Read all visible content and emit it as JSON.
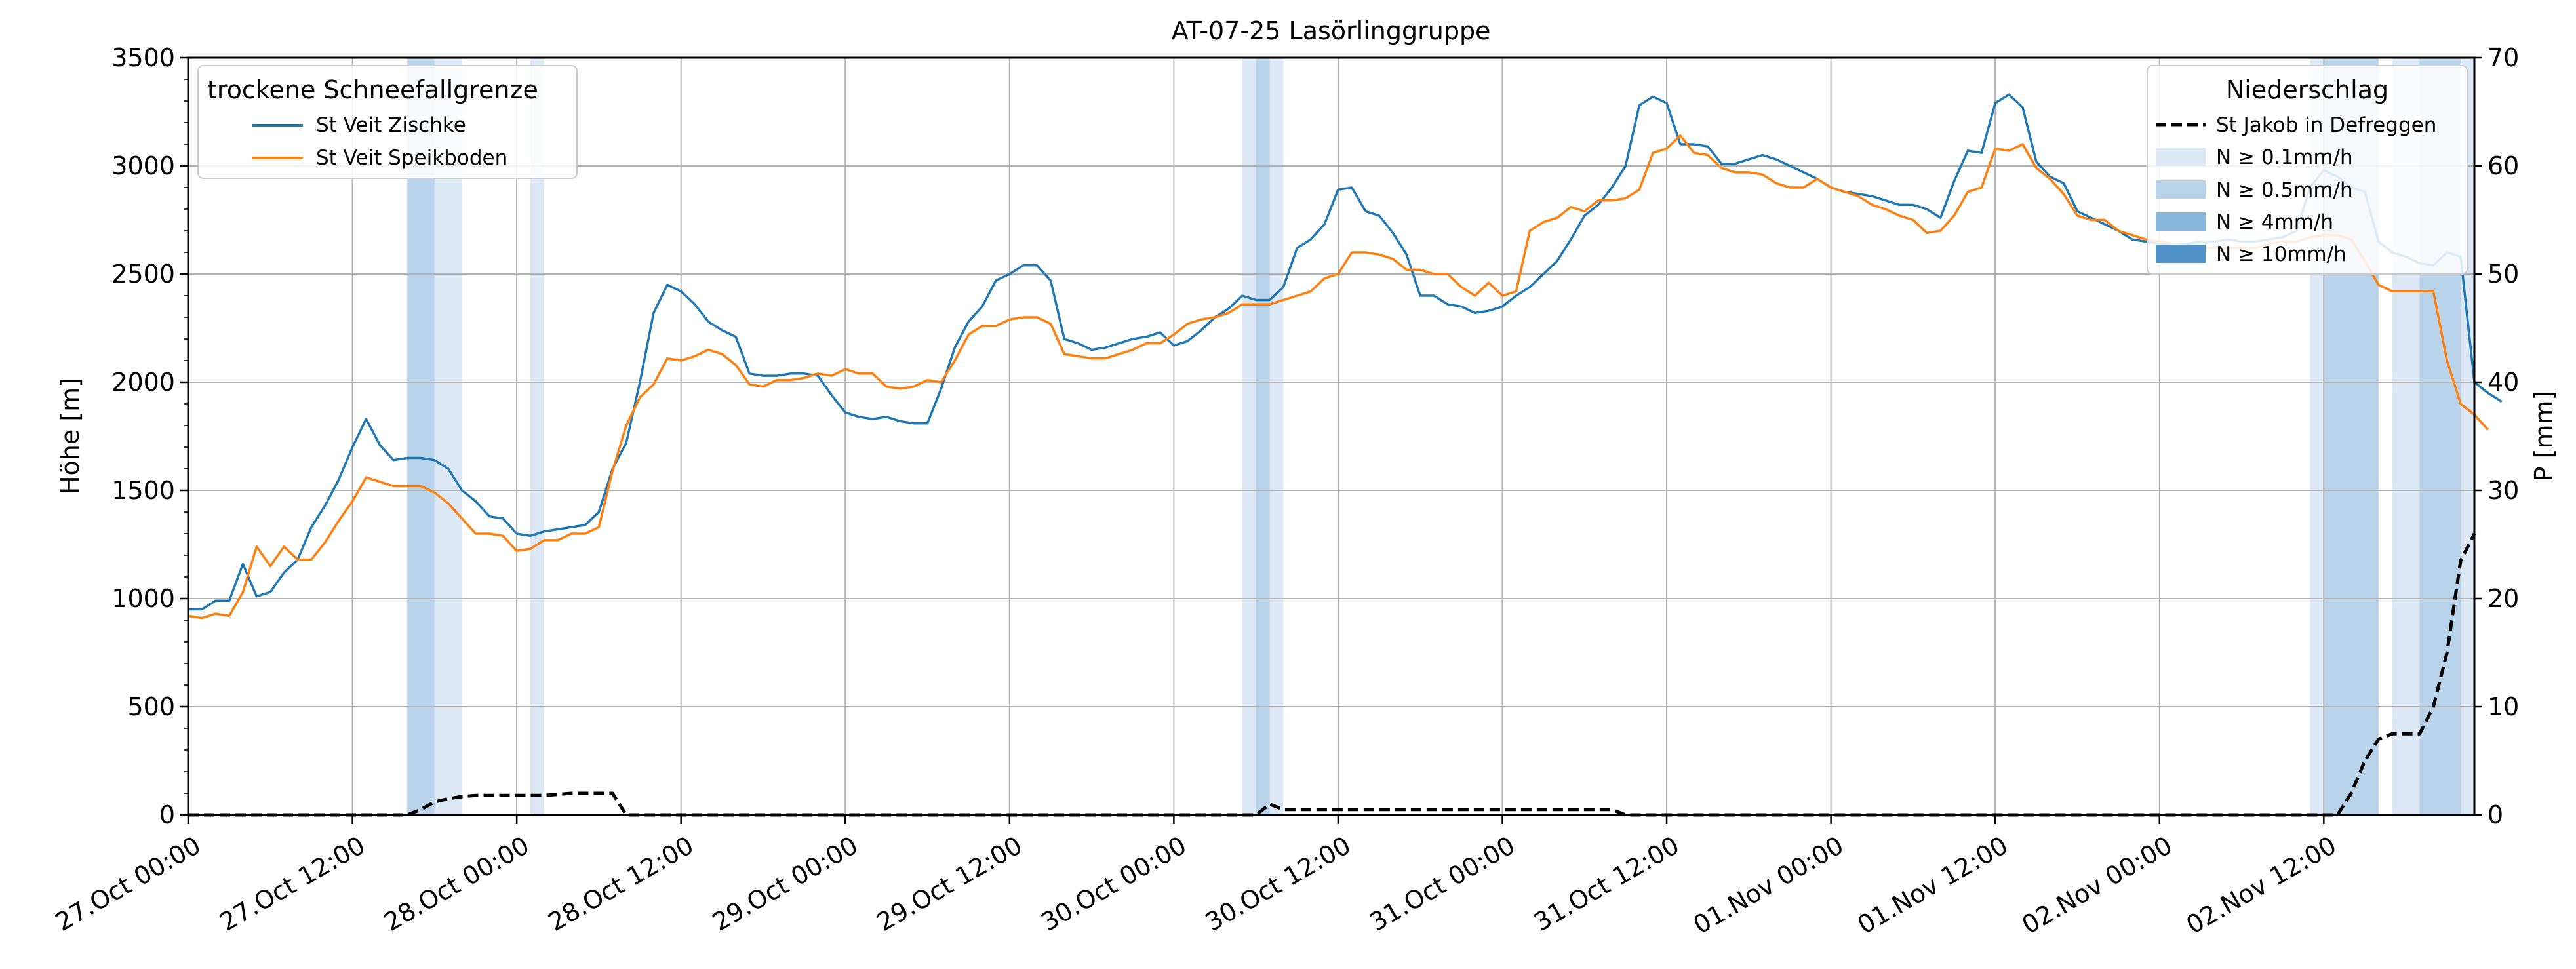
{
  "chart_data": {
    "type": "line",
    "title": "AT-07-25 Lasörlinggruppe",
    "ylabel": "Höhe [m]",
    "y2label": "P [mm]",
    "ylim": [
      0,
      3500
    ],
    "y2lim": [
      0,
      70
    ],
    "yticks": [
      "0",
      "500",
      "1000",
      "1500",
      "2000",
      "2500",
      "3000",
      "3500"
    ],
    "y2ticks": [
      "0",
      "10",
      "20",
      "30",
      "40",
      "50",
      "60",
      "70"
    ],
    "xlim_hours": [
      0,
      167
    ],
    "xticks": [
      {
        "h": 0,
        "label": "27.Oct 00:00"
      },
      {
        "h": 12,
        "label": "27.Oct 12:00"
      },
      {
        "h": 24,
        "label": "28.Oct 00:00"
      },
      {
        "h": 36,
        "label": "28.Oct 12:00"
      },
      {
        "h": 48,
        "label": "29.Oct 00:00"
      },
      {
        "h": 60,
        "label": "29.Oct 12:00"
      },
      {
        "h": 72,
        "label": "30.Oct 00:00"
      },
      {
        "h": 84,
        "label": "30.Oct 12:00"
      },
      {
        "h": 96,
        "label": "31.Oct 00:00"
      },
      {
        "h": 108,
        "label": "31.Oct 12:00"
      },
      {
        "h": 120,
        "label": "01.Nov 00:00"
      },
      {
        "h": 132,
        "label": "01.Nov 12:00"
      },
      {
        "h": 144,
        "label": "02.Nov 00:00"
      },
      {
        "h": 156,
        "label": "02.Nov 12:00"
      }
    ],
    "grid": true,
    "legend_left": {
      "title": "trockene Schneefallgrenze",
      "placement": "top-left",
      "entries": [
        "St Veit Zischke",
        "St Veit Speikboden"
      ]
    },
    "legend_right": {
      "title": "Niederschlag",
      "placement": "top-right",
      "entries": [
        "St Jakob in Defreggen",
        "N ≥ 0.1mm/h",
        "N ≥ 0.5mm/h",
        "N ≥ 4mm/h",
        "N ≥ 10mm/h"
      ]
    },
    "colors": {
      "zischke": "#1f77b4",
      "speikboden": "#ff7f0e",
      "precip": "#000000",
      "n01": "#dce8f5",
      "n05": "#b8d3ea",
      "n4": "#86b6dc",
      "n10": "#4e92c9",
      "grid": "#b0b0b0"
    },
    "series": [
      {
        "name": "St Veit Zischke",
        "axis": "left",
        "x_hours_start": 0,
        "values": [
          950,
          950,
          990,
          990,
          1160,
          1010,
          1030,
          1120,
          1180,
          1330,
          1430,
          1550,
          1700,
          1830,
          1710,
          1640,
          1650,
          1650,
          1640,
          1600,
          1500,
          1450,
          1380,
          1370,
          1300,
          1290,
          1310,
          1320,
          1330,
          1340,
          1400,
          1600,
          1720,
          2000,
          2320,
          2450,
          2420,
          2360,
          2280,
          2240,
          2210,
          2040,
          2030,
          2030,
          2040,
          2040,
          2030,
          1940,
          1860,
          1840,
          1830,
          1840,
          1820,
          1810,
          1810,
          1970,
          2160,
          2280,
          2350,
          2470,
          2500,
          2540,
          2540,
          2470,
          2200,
          2180,
          2150,
          2160,
          2180,
          2200,
          2210,
          2230,
          2170,
          2190,
          2240,
          2300,
          2340,
          2400,
          2380,
          2380,
          2440,
          2620,
          2660,
          2730,
          2890,
          2900,
          2790,
          2770,
          2690,
          2590,
          2400,
          2400,
          2360,
          2350,
          2320,
          2330,
          2350,
          2400,
          2440,
          2500,
          2560,
          2660,
          2770,
          2820,
          2900,
          3000,
          3280,
          3320,
          3290,
          3100,
          3100,
          3090,
          3010,
          3010,
          3030,
          3050,
          3030,
          3000,
          2970,
          2940,
          2900,
          2880,
          2870,
          2860,
          2840,
          2820,
          2820,
          2800,
          2760,
          2930,
          3070,
          3060,
          3290,
          3330,
          3270,
          3020,
          2950,
          2920,
          2790,
          2760,
          2730,
          2700,
          2660,
          2650,
          2640,
          2640,
          2640,
          2650,
          2650,
          2660,
          2650,
          2650,
          2660,
          2670,
          2700,
          2900,
          2980,
          2950,
          2900,
          2880,
          2650,
          2600,
          2580,
          2550,
          2540,
          2600,
          2580,
          2000,
          1950,
          1910
        ]
      },
      {
        "name": "St Veit Speikboden",
        "axis": "left",
        "x_hours_start": 0,
        "values": [
          920,
          910,
          930,
          920,
          1030,
          1240,
          1150,
          1240,
          1180,
          1180,
          1260,
          1360,
          1450,
          1560,
          1540,
          1520,
          1520,
          1520,
          1490,
          1440,
          1370,
          1300,
          1300,
          1290,
          1220,
          1230,
          1270,
          1270,
          1300,
          1300,
          1330,
          1590,
          1800,
          1930,
          1990,
          2110,
          2100,
          2120,
          2150,
          2130,
          2080,
          1990,
          1980,
          2010,
          2010,
          2020,
          2040,
          2030,
          2060,
          2040,
          2040,
          1980,
          1970,
          1980,
          2010,
          2000,
          2100,
          2220,
          2260,
          2260,
          2290,
          2300,
          2300,
          2270,
          2130,
          2120,
          2110,
          2110,
          2130,
          2150,
          2180,
          2180,
          2220,
          2270,
          2290,
          2300,
          2320,
          2360,
          2360,
          2360,
          2380,
          2400,
          2420,
          2480,
          2500,
          2600,
          2600,
          2590,
          2570,
          2520,
          2520,
          2500,
          2500,
          2440,
          2400,
          2460,
          2400,
          2420,
          2700,
          2740,
          2760,
          2810,
          2790,
          2840,
          2840,
          2850,
          2890,
          3060,
          3080,
          3140,
          3060,
          3050,
          2990,
          2970,
          2970,
          2960,
          2920,
          2900,
          2900,
          2940,
          2900,
          2880,
          2860,
          2820,
          2800,
          2770,
          2750,
          2690,
          2700,
          2770,
          2880,
          2900,
          3080,
          3070,
          3100,
          2990,
          2940,
          2870,
          2770,
          2750,
          2750,
          2700,
          2680,
          2660,
          2650,
          2640,
          2630,
          2620,
          2620,
          2620,
          2620,
          2620,
          2640,
          2650,
          2650,
          2670,
          2680,
          2680,
          2660,
          2560,
          2450,
          2420,
          2420,
          2420,
          2420,
          2100,
          1900,
          1850,
          1780
        ]
      },
      {
        "name": "St Jakob in Defreggen",
        "axis": "right",
        "dashed": true,
        "points": [
          [
            0,
            0
          ],
          [
            16,
            0
          ],
          [
            17,
            0.5
          ],
          [
            18,
            1.2
          ],
          [
            19,
            1.5
          ],
          [
            20,
            1.7
          ],
          [
            21,
            1.8
          ],
          [
            24,
            1.8
          ],
          [
            26,
            1.8
          ],
          [
            28,
            2.0
          ],
          [
            31,
            2.0
          ],
          [
            31.5,
            1.0
          ],
          [
            32,
            0
          ],
          [
            78,
            0
          ],
          [
            78.5,
            0.5
          ],
          [
            79,
            1.0
          ],
          [
            80,
            0.5
          ],
          [
            81,
            0.5
          ],
          [
            100,
            0.5
          ],
          [
            104,
            0.5
          ],
          [
            105,
            0
          ],
          [
            157,
            0
          ],
          [
            158,
            2.0
          ],
          [
            159,
            5.0
          ],
          [
            160,
            7.0
          ],
          [
            161,
            7.5
          ],
          [
            162,
            7.5
          ],
          [
            163,
            7.5
          ],
          [
            164,
            10
          ],
          [
            165,
            15
          ],
          [
            166,
            23.5
          ],
          [
            167,
            26
          ]
        ]
      }
    ],
    "precip_bands": [
      {
        "start": 16,
        "end": 18,
        "class": "n05"
      },
      {
        "start": 18,
        "end": 20,
        "class": "n01"
      },
      {
        "start": 25,
        "end": 26,
        "class": "n01"
      },
      {
        "start": 77,
        "end": 78,
        "class": "n01"
      },
      {
        "start": 78,
        "end": 79,
        "class": "n05"
      },
      {
        "start": 79,
        "end": 80,
        "class": "n01"
      },
      {
        "start": 155,
        "end": 156,
        "class": "n01"
      },
      {
        "start": 156,
        "end": 160,
        "class": "n05"
      },
      {
        "start": 161,
        "end": 163,
        "class": "n01"
      },
      {
        "start": 163,
        "end": 166,
        "class": "n05"
      },
      {
        "start": 166,
        "end": 167,
        "class": "n01"
      }
    ]
  }
}
